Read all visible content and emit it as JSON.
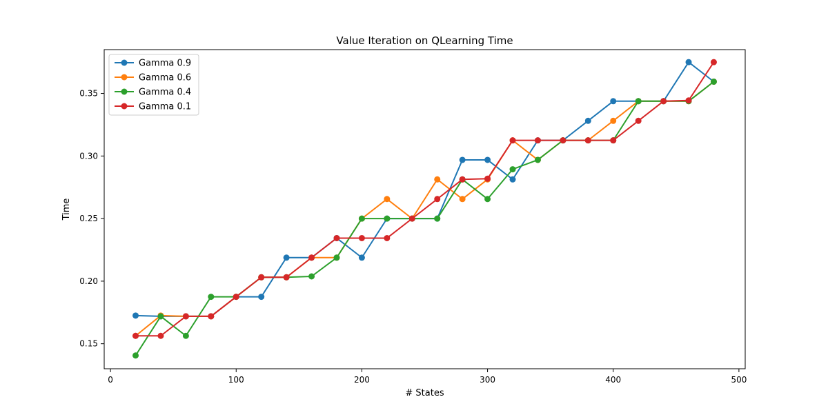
{
  "chart_data": {
    "type": "line",
    "title": "Value Iteration on QLearning Time",
    "xlabel": "# States",
    "ylabel": "Time",
    "xlim": [
      -5,
      505
    ],
    "ylim": [
      0.13,
      0.385
    ],
    "xticks": [
      0,
      100,
      200,
      300,
      400,
      500
    ],
    "xtick_labels": [
      "0",
      "100",
      "200",
      "300",
      "400",
      "500"
    ],
    "yticks": [
      0.15,
      0.2,
      0.25,
      0.3,
      0.35
    ],
    "ytick_labels": [
      "0.15",
      "0.20",
      "0.25",
      "0.30",
      "0.35"
    ],
    "grid": false,
    "legend_position": "top-left",
    "x": [
      20,
      40,
      60,
      80,
      100,
      120,
      140,
      160,
      180,
      200,
      220,
      240,
      260,
      280,
      300,
      320,
      340,
      360,
      380,
      400,
      420,
      440,
      460,
      480
    ],
    "series": [
      {
        "name": "Gamma 0.9",
        "color": "#1f77b4",
        "values": [
          0.1725,
          0.1719,
          0.1719,
          0.1719,
          0.1875,
          0.1875,
          0.2188,
          0.2188,
          0.2344,
          0.2188,
          0.25,
          0.25,
          0.25,
          0.2969,
          0.2969,
          0.2813,
          0.3125,
          0.3125,
          0.3281,
          0.3438,
          0.3438,
          0.3438,
          0.375,
          0.3594
        ]
      },
      {
        "name": "Gamma 0.6",
        "color": "#ff7f0e",
        "values": [
          0.1563,
          0.1725,
          0.1719,
          0.1719,
          0.1875,
          0.2031,
          0.2031,
          0.2188,
          0.2188,
          0.25,
          0.2656,
          0.25,
          0.2813,
          0.2656,
          0.2813,
          0.3125,
          0.2969,
          0.3125,
          0.3125,
          0.3281,
          0.3438,
          0.3438,
          0.3438,
          0.3594
        ]
      },
      {
        "name": "Gamma 0.4",
        "color": "#2ca02c",
        "values": [
          0.1406,
          0.1719,
          0.1563,
          0.1875,
          0.1875,
          0.2031,
          0.2031,
          0.2038,
          0.2188,
          0.25,
          0.25,
          0.25,
          0.25,
          0.2813,
          0.2656,
          0.2894,
          0.2969,
          0.3125,
          0.3125,
          0.3125,
          0.3438,
          0.3438,
          0.3438,
          0.3594
        ]
      },
      {
        "name": "Gamma 0.1",
        "color": "#d62728",
        "values": [
          0.1563,
          0.1563,
          0.1719,
          0.1719,
          0.1875,
          0.2031,
          0.2031,
          0.2188,
          0.2344,
          0.2344,
          0.2344,
          0.25,
          0.2656,
          0.2813,
          0.2819,
          0.3125,
          0.3125,
          0.3125,
          0.3125,
          0.3125,
          0.3281,
          0.3438,
          0.3444,
          0.375
        ]
      }
    ]
  }
}
